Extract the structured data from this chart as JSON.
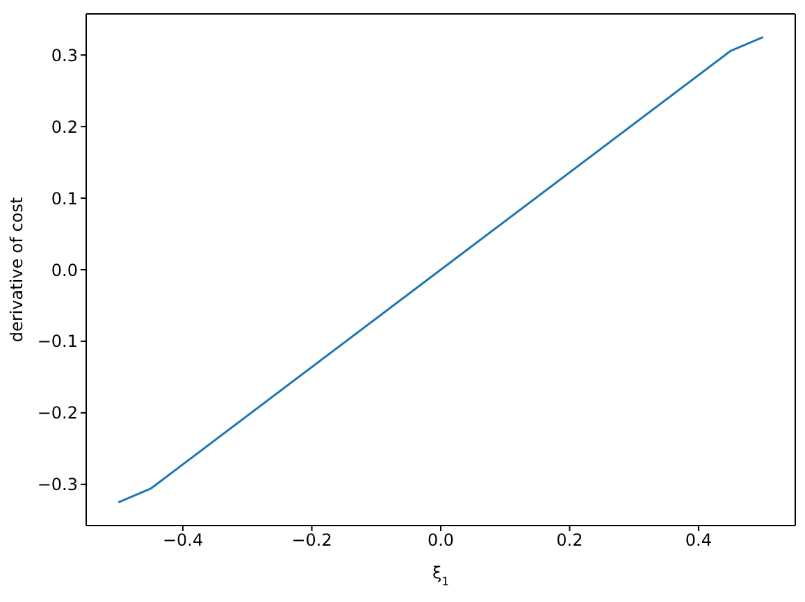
{
  "chart_data": {
    "type": "line",
    "xlabel": "ξ$_{1}$",
    "ylabel": "derivative of cost",
    "x": [
      -0.5,
      -0.45,
      0,
      0.45,
      0.5
    ],
    "series": [
      {
        "color": "#1f77b4",
        "values": [
          -0.325,
          -0.306,
          0,
          0.306,
          0.325
        ]
      }
    ],
    "xlim": [
      -0.55,
      0.55
    ],
    "ylim": [
      -0.3575,
      0.3575
    ],
    "xticks": [
      {
        "value": -0.4,
        "label": "−0.4"
      },
      {
        "value": -0.2,
        "label": "−0.2"
      },
      {
        "value": 0,
        "label": "0.0"
      },
      {
        "value": 0.2,
        "label": "0.2"
      },
      {
        "value": 0.4,
        "label": "0.4"
      }
    ],
    "yticks": [
      {
        "value": -0.3,
        "label": "−0.3"
      },
      {
        "value": -0.2,
        "label": "−0.2"
      },
      {
        "value": -0.1,
        "label": "−0.1"
      },
      {
        "value": 0,
        "label": "0.0"
      },
      {
        "value": 0.1,
        "label": "0.1"
      },
      {
        "value": 0.2,
        "label": "0.2"
      },
      {
        "value": 0.3,
        "label": "0.3"
      }
    ],
    "grid": false,
    "legend": false,
    "marker": "none",
    "line_style": "solid"
  }
}
